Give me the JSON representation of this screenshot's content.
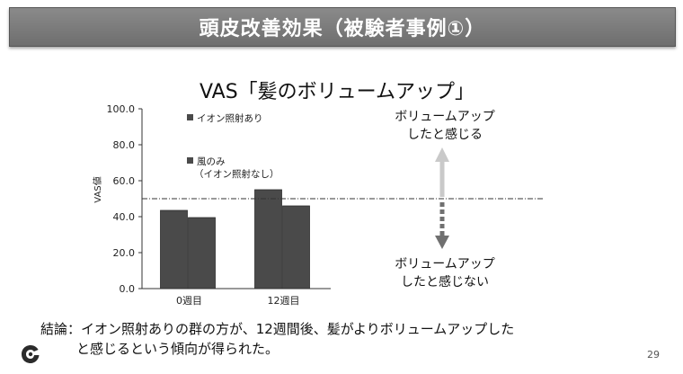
{
  "slide": {
    "title": "頭皮改善効果（被験者事例①）",
    "conclusion_line1": "結論：イオン照射ありの群の方が、12週間後、髪がよりボリュームアップした",
    "conclusion_line2": "と感じるという傾向が得られた。",
    "page_number": "29"
  },
  "legend": {
    "item1": "イオン照射あり",
    "item2_line1": "風のみ",
    "item2_line2": "（イオン照射なし）"
  },
  "annotations": {
    "up_line1": "ボリュームアップ",
    "up_line2": "したと感じる",
    "down_line1": "ボリュームアップ",
    "down_line2": "したと感じない"
  },
  "colors": {
    "bar": "#4a4a4a",
    "arrow_up": "#c9c9c9",
    "arrow_down": "#707070",
    "reference_line": "#333333"
  },
  "chart_data": {
    "type": "bar",
    "title": "VAS「髪のボリュームアップ」",
    "ylabel": "VAS値",
    "xlabel": "",
    "categories": [
      "0週目",
      "12週目"
    ],
    "series": [
      {
        "name": "イオン照射あり",
        "values": [
          43.5,
          55.0
        ]
      },
      {
        "name": "風のみ（イオン照射なし）",
        "values": [
          39.5,
          46.0
        ]
      }
    ],
    "ylim": [
      0,
      100
    ],
    "yticks": [
      "0.0",
      "20.0",
      "40.0",
      "60.0",
      "80.0",
      "100.0"
    ],
    "reference_line_y": 50,
    "grid": false
  }
}
